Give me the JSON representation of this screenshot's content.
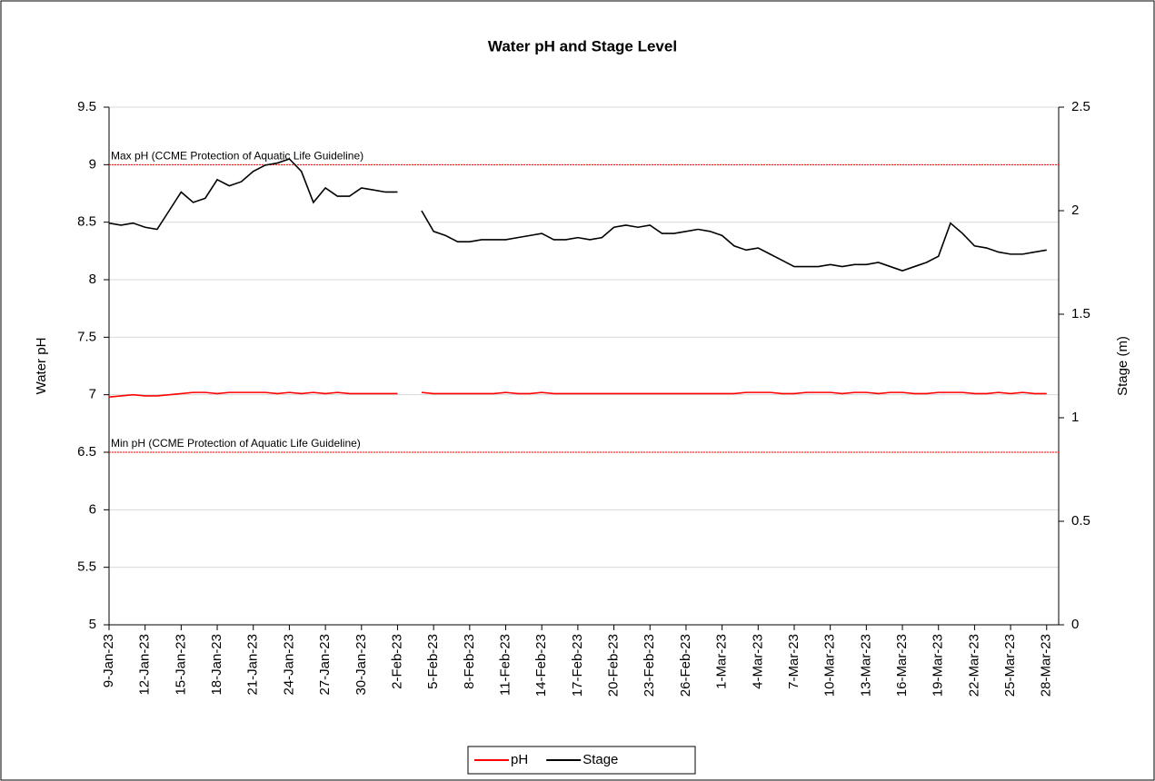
{
  "chart_data": {
    "type": "line",
    "title": "Water pH and Stage Level",
    "y_label": "Water pH",
    "y2_label": "Stage (m)",
    "x": [
      "2023-01-09",
      "2023-01-10",
      "2023-01-11",
      "2023-01-12",
      "2023-01-13",
      "2023-01-14",
      "2023-01-15",
      "2023-01-16",
      "2023-01-17",
      "2023-01-18",
      "2023-01-19",
      "2023-01-20",
      "2023-01-21",
      "2023-01-22",
      "2023-01-23",
      "2023-01-24",
      "2023-01-25",
      "2023-01-26",
      "2023-01-27",
      "2023-01-28",
      "2023-01-29",
      "2023-01-30",
      "2023-01-31",
      "2023-02-01",
      "2023-02-02",
      "2023-02-03",
      "2023-02-04",
      "2023-02-05",
      "2023-02-06",
      "2023-02-07",
      "2023-02-08",
      "2023-02-09",
      "2023-02-10",
      "2023-02-11",
      "2023-02-12",
      "2023-02-13",
      "2023-02-14",
      "2023-02-15",
      "2023-02-16",
      "2023-02-17",
      "2023-02-18",
      "2023-02-19",
      "2023-02-20",
      "2023-02-21",
      "2023-02-22",
      "2023-02-23",
      "2023-02-24",
      "2023-02-25",
      "2023-02-26",
      "2023-02-27",
      "2023-02-28",
      "2023-03-01",
      "2023-03-02",
      "2023-03-03",
      "2023-03-04",
      "2023-03-05",
      "2023-03-06",
      "2023-03-07",
      "2023-03-08",
      "2023-03-09",
      "2023-03-10",
      "2023-03-11",
      "2023-03-12",
      "2023-03-13",
      "2023-03-14",
      "2023-03-15",
      "2023-03-16",
      "2023-03-17",
      "2023-03-18",
      "2023-03-19",
      "2023-03-20",
      "2023-03-21",
      "2023-03-22",
      "2023-03-23",
      "2023-03-24",
      "2023-03-25",
      "2023-03-26",
      "2023-03-27",
      "2023-03-28"
    ],
    "series": [
      {
        "name": "pH",
        "color": "#ff0000",
        "values": [
          6.98,
          6.99,
          7.0,
          6.99,
          6.99,
          7.0,
          7.01,
          7.02,
          7.02,
          7.01,
          7.02,
          7.02,
          7.02,
          7.02,
          7.01,
          7.02,
          7.01,
          7.02,
          7.01,
          7.02,
          7.01,
          7.01,
          7.01,
          7.01,
          7.01,
          null,
          7.02,
          7.01,
          7.01,
          7.01,
          7.01,
          7.01,
          7.01,
          7.02,
          7.01,
          7.01,
          7.02,
          7.01,
          7.01,
          7.01,
          7.01,
          7.01,
          7.01,
          7.01,
          7.01,
          7.01,
          7.01,
          7.01,
          7.01,
          7.01,
          7.01,
          7.01,
          7.01,
          7.02,
          7.02,
          7.02,
          7.01,
          7.01,
          7.02,
          7.02,
          7.02,
          7.01,
          7.02,
          7.02,
          7.01,
          7.02,
          7.02,
          7.01,
          7.01,
          7.02,
          7.02,
          7.02,
          7.01,
          7.01,
          7.02,
          7.01,
          7.02,
          7.01,
          7.01
        ]
      },
      {
        "name": "Stage",
        "color": "#000000",
        "axis": "y2",
        "values": [
          1.94,
          1.93,
          1.94,
          1.92,
          1.91,
          2.0,
          2.09,
          2.04,
          2.06,
          2.15,
          2.12,
          2.14,
          2.19,
          2.22,
          2.23,
          2.25,
          2.19,
          2.04,
          2.11,
          2.07,
          2.07,
          2.11,
          2.1,
          2.09,
          2.09,
          null,
          2.0,
          1.9,
          1.88,
          1.85,
          1.85,
          1.86,
          1.86,
          1.86,
          1.87,
          1.88,
          1.89,
          1.86,
          1.86,
          1.87,
          1.86,
          1.87,
          1.92,
          1.93,
          1.92,
          1.93,
          1.89,
          1.89,
          1.9,
          1.91,
          1.9,
          1.88,
          1.83,
          1.81,
          1.82,
          1.79,
          1.76,
          1.73,
          1.73,
          1.73,
          1.74,
          1.73,
          1.74,
          1.74,
          1.75,
          1.73,
          1.71,
          1.73,
          1.75,
          1.78,
          1.94,
          1.89,
          1.83,
          1.82,
          1.8,
          1.79,
          1.79,
          1.8,
          1.81
        ]
      }
    ],
    "reference_lines": [
      {
        "value": 9,
        "label": "Max pH (CCME Protection of Aquatic Life Guideline)",
        "color": "#ff0000"
      },
      {
        "value": 6.5,
        "label": "Min pH (CCME Protection of Aquatic Life Guideline)",
        "color": "#ff0000"
      }
    ],
    "xlim": [
      "2023-01-09",
      "2023-03-29"
    ],
    "xticks": [
      {
        "value": "2023-01-09",
        "label": "9-Jan-23"
      },
      {
        "value": "2023-01-12",
        "label": "12-Jan-23"
      },
      {
        "value": "2023-01-15",
        "label": "15-Jan-23"
      },
      {
        "value": "2023-01-18",
        "label": "18-Jan-23"
      },
      {
        "value": "2023-01-21",
        "label": "21-Jan-23"
      },
      {
        "value": "2023-01-24",
        "label": "24-Jan-23"
      },
      {
        "value": "2023-01-27",
        "label": "27-Jan-23"
      },
      {
        "value": "2023-01-30",
        "label": "30-Jan-23"
      },
      {
        "value": "2023-02-02",
        "label": "2-Feb-23"
      },
      {
        "value": "2023-02-05",
        "label": "5-Feb-23"
      },
      {
        "value": "2023-02-08",
        "label": "8-Feb-23"
      },
      {
        "value": "2023-02-11",
        "label": "11-Feb-23"
      },
      {
        "value": "2023-02-14",
        "label": "14-Feb-23"
      },
      {
        "value": "2023-02-17",
        "label": "17-Feb-23"
      },
      {
        "value": "2023-02-20",
        "label": "20-Feb-23"
      },
      {
        "value": "2023-02-23",
        "label": "23-Feb-23"
      },
      {
        "value": "2023-02-26",
        "label": "26-Feb-23"
      },
      {
        "value": "2023-03-01",
        "label": "1-Mar-23"
      },
      {
        "value": "2023-03-04",
        "label": "4-Mar-23"
      },
      {
        "value": "2023-03-07",
        "label": "7-Mar-23"
      },
      {
        "value": "2023-03-10",
        "label": "10-Mar-23"
      },
      {
        "value": "2023-03-13",
        "label": "13-Mar-23"
      },
      {
        "value": "2023-03-16",
        "label": "16-Mar-23"
      },
      {
        "value": "2023-03-19",
        "label": "19-Mar-23"
      },
      {
        "value": "2023-03-22",
        "label": "22-Mar-23"
      },
      {
        "value": "2023-03-25",
        "label": "25-Mar-23"
      },
      {
        "value": "2023-03-28",
        "label": "28-Mar-23"
      }
    ],
    "ylim": [
      5,
      9.5
    ],
    "yticks": [
      5,
      5.5,
      6,
      6.5,
      7,
      7.5,
      8,
      8.5,
      9,
      9.5
    ],
    "y2lim": [
      0,
      2.5
    ],
    "y2ticks": [
      0,
      0.5,
      1,
      1.5,
      2,
      2.5
    ],
    "grid": true,
    "legend": "bottom"
  }
}
